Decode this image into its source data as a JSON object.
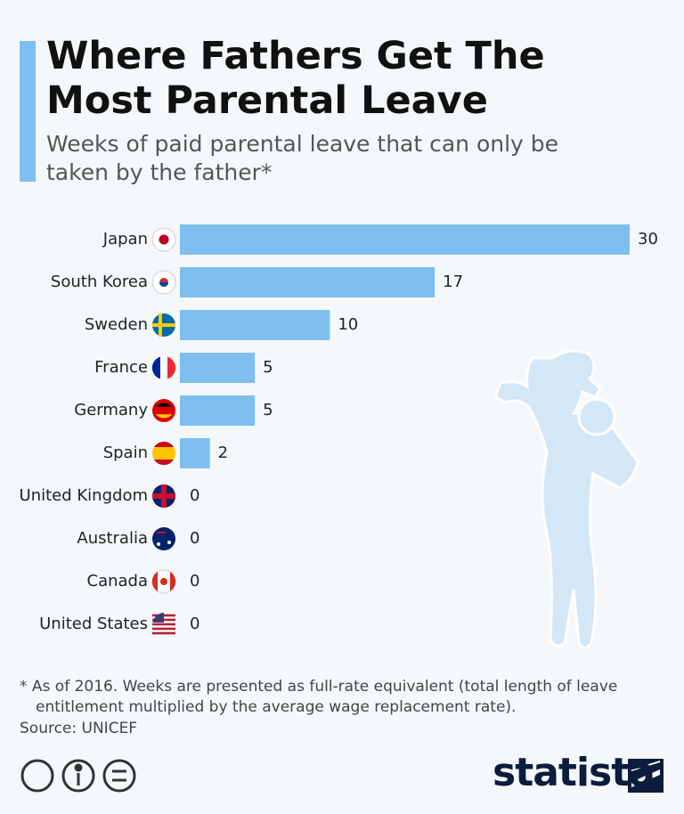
{
  "chart_data": {
    "type": "bar",
    "orientation": "horizontal",
    "title": "Where Fathers Get The Most Parental Leave",
    "subtitle": "Weeks of paid parental leave that can only be taken by the father*",
    "categories": [
      "Japan",
      "South Korea",
      "Sweden",
      "France",
      "Germany",
      "Spain",
      "United Kingdom",
      "Australia",
      "Canada",
      "United States"
    ],
    "values": [
      30,
      17,
      10,
      5,
      5,
      2,
      0,
      0,
      0,
      0
    ],
    "color": "#7fbff0",
    "footnote": "* As of 2016. Weeks are presented as full-rate equivalent (total length of leave entitlement multiplied by the average wage replacement rate).",
    "source": "Source: UNICEF",
    "brand": "statista"
  }
}
